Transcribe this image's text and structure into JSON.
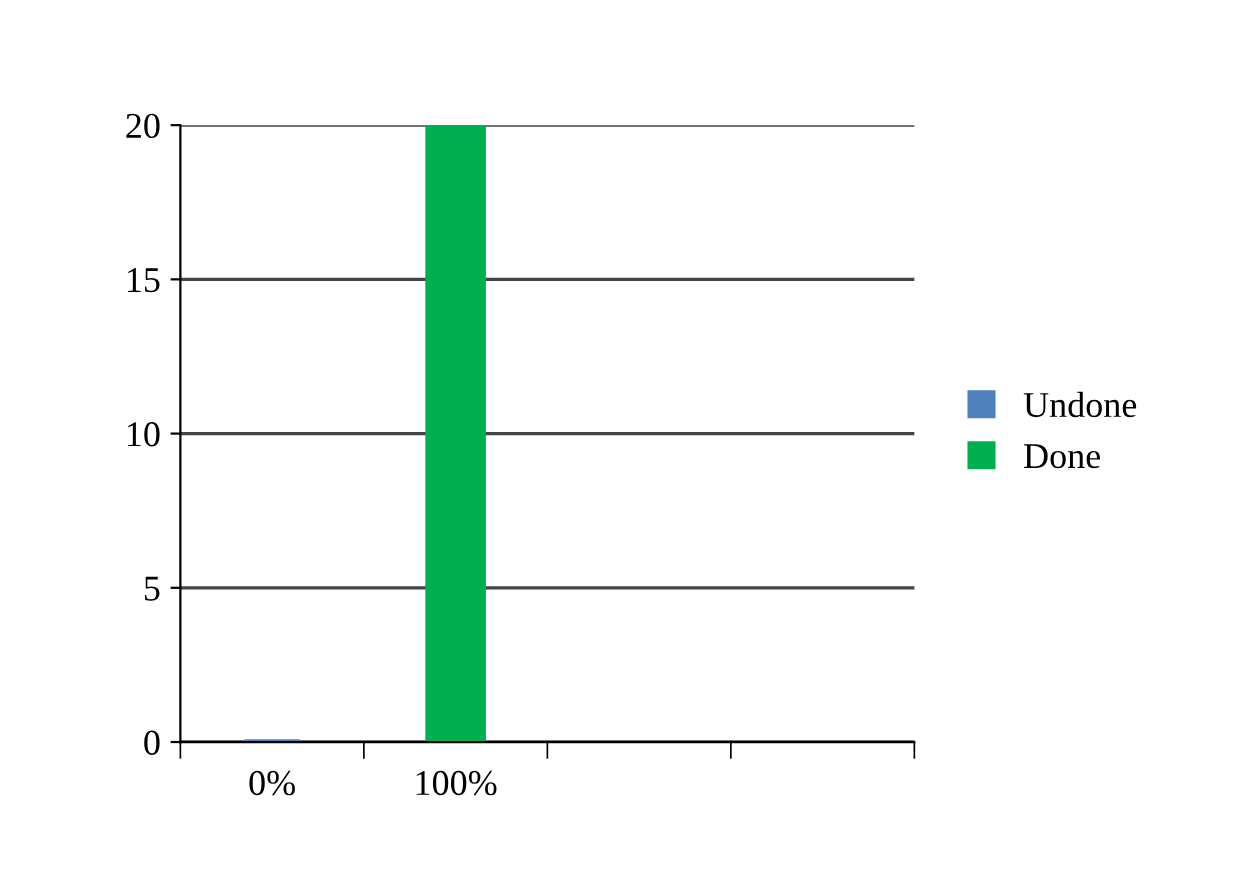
{
  "chart_data": {
    "type": "bar",
    "categories": [
      "0%",
      "100%",
      null,
      null
    ],
    "series": [
      {
        "name": "Undone",
        "color": "#4f81bd",
        "values": [
          0,
          null,
          null,
          null
        ]
      },
      {
        "name": "Done",
        "color": "#00b050",
        "values": [
          null,
          20,
          null,
          null
        ]
      }
    ],
    "ylim": [
      0,
      20
    ],
    "yticks": [
      0,
      5,
      10,
      15,
      20
    ],
    "grid": "y",
    "legend": "right"
  }
}
